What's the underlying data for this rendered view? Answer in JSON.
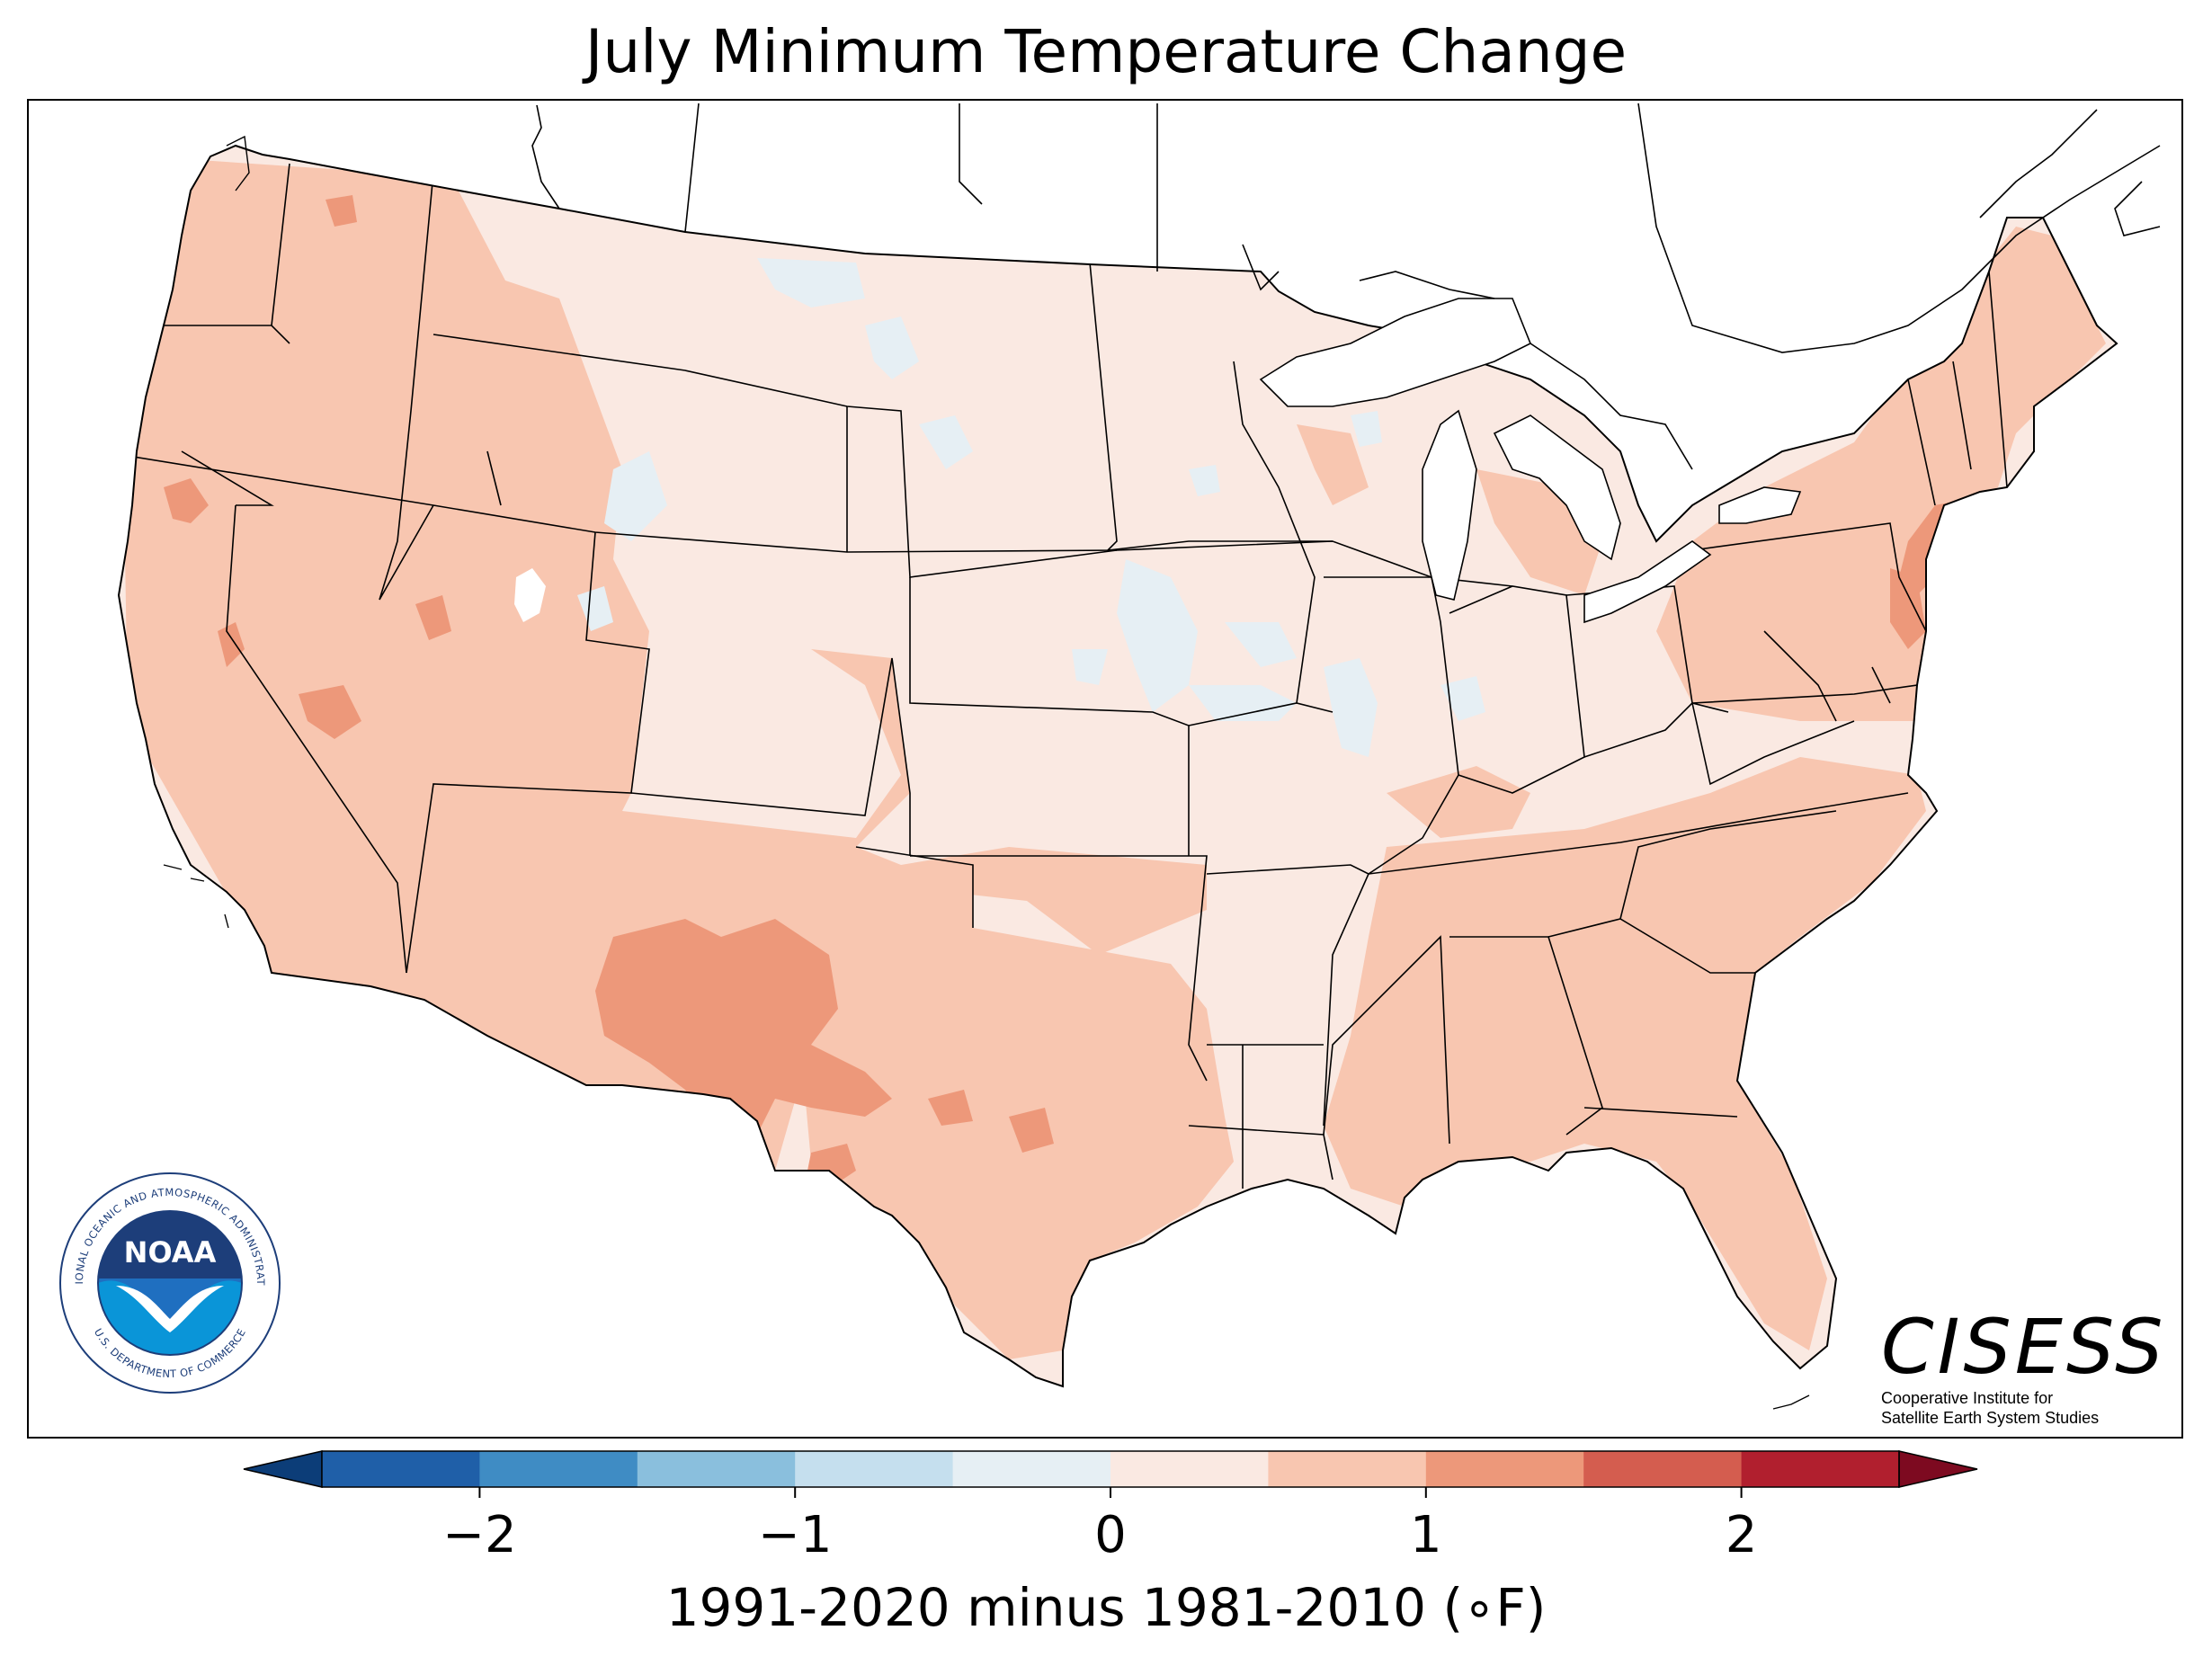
{
  "title": "July Minimum Temperature Change",
  "colorbar": {
    "label": "1991-2020 minus 1981-2010 (∘F)",
    "bounds": [
      -2.5,
      2.5
    ],
    "bin_width": 0.5,
    "extend": "both",
    "ticks": [
      -2,
      -1,
      0,
      1,
      2
    ],
    "tick_labels": [
      "−2",
      "−1",
      "0",
      "1",
      "2"
    ],
    "colors": [
      "#1f5fa8",
      "#3f8cc4",
      "#8abfdd",
      "#c5dfee",
      "#e6eff4",
      "#fae9e2",
      "#f8c6b0",
      "#ed987a",
      "#d45d4f",
      "#b11f2e"
    ],
    "extend_colors": {
      "low": "#0c3d78",
      "high": "#7d0a20"
    }
  },
  "legend_values": {
    "unit": "°F",
    "range_depicted": [
      -0.5,
      1.5
    ],
    "dominant_bins": [
      0.0,
      0.5
    ],
    "hotspots": [
      "southwest New Mexico",
      "west Texas",
      "Southern New England",
      "New Jersey",
      "central California"
    ],
    "cooling_areas": [
      "eastern Montana",
      "northern Wyoming",
      "Nebraska/Iowa border",
      "Illinois"
    ]
  },
  "logos": {
    "noaa_ring_text": "NATIONAL OCEANIC AND ATMOSPHERIC ADMINISTRATION",
    "noaa_ring_bottom": "U.S. DEPARTMENT OF COMMERCE",
    "noaa_center": "NOAA",
    "cisess_name": "CISESS",
    "cisess_sub1": "Cooperative Institute for",
    "cisess_sub2": "Satellite Earth System Studies"
  }
}
